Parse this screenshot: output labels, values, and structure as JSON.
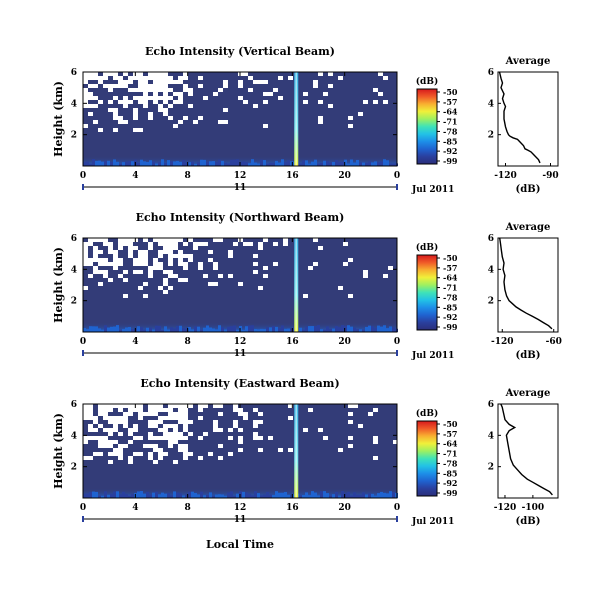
{
  "figure": {
    "xlabel": "Local Time",
    "panel_x_ticks": [
      "0",
      "4",
      "8",
      "12",
      "16",
      "20",
      "0"
    ],
    "panel_y_ticks": [
      "6",
      "4",
      "2"
    ],
    "day_label": "11",
    "month_label": "Jul 2011",
    "avg_title": "Average",
    "avg_xlabel": "(dB)",
    "colorbar_label": "(dB)",
    "colorbar_ticks": [
      "-50",
      "-57",
      "-64",
      "-71",
      "-78",
      "-85",
      "-92",
      "-99"
    ],
    "colormap": [
      "#2b2f7a",
      "#2a3f9e",
      "#1f63d0",
      "#1d8fe8",
      "#22c2e6",
      "#3fe3b8",
      "#9ef060",
      "#f0f03a",
      "#f8b030",
      "#f05a28",
      "#d7191c"
    ],
    "background_color": "#333c78",
    "colors": {
      "blank": "#ffffff",
      "axis": "#000000",
      "spike": "#7fe8f0",
      "spike_core": "#c8f870"
    }
  },
  "chart_data": [
    {
      "type": "heatmap",
      "title": "Echo Intensity (Vertical Beam)",
      "ylabel": "Height (km)",
      "xlabel": "",
      "xlim": [
        0,
        24
      ],
      "ylim": [
        0,
        6
      ],
      "x_ticks": [
        0,
        4,
        8,
        12,
        16,
        20,
        24
      ],
      "y_ticks": [
        2,
        4,
        6
      ],
      "color_range_db": [
        -99,
        -50
      ],
      "spike_local_time_h": 16.3,
      "average_profile": {
        "title": "Average",
        "xlabel": "(dB)",
        "x_ticks": [
          -120,
          -90
        ],
        "xlim": [
          -125,
          -85
        ],
        "ylim": [
          0,
          6
        ],
        "y_ticks": [
          2,
          4,
          6
        ],
        "points": [
          [
            -97,
            0.2
          ],
          [
            -98,
            0.4
          ],
          [
            -101,
            0.7
          ],
          [
            -103,
            0.9
          ],
          [
            -105,
            1.0
          ],
          [
            -107,
            1.1
          ],
          [
            -108,
            1.3
          ],
          [
            -110,
            1.5
          ],
          [
            -112,
            1.7
          ],
          [
            -115,
            1.8
          ],
          [
            -117,
            1.9
          ],
          [
            -118,
            2.0
          ],
          [
            -119,
            2.2
          ],
          [
            -120,
            2.5
          ],
          [
            -121,
            3.0
          ],
          [
            -121,
            3.5
          ],
          [
            -120,
            3.8
          ],
          [
            -121,
            4.0
          ],
          [
            -122,
            4.3
          ],
          [
            -121,
            4.6
          ],
          [
            -123,
            5.0
          ],
          [
            -122,
            5.3
          ],
          [
            -123,
            5.6
          ],
          [
            -124,
            6.0
          ]
        ]
      }
    },
    {
      "type": "heatmap",
      "title": "Echo Intensity (Northward Beam)",
      "ylabel": "Height (km)",
      "xlabel": "",
      "xlim": [
        0,
        24
      ],
      "ylim": [
        0,
        6
      ],
      "x_ticks": [
        0,
        4,
        8,
        12,
        16,
        20,
        24
      ],
      "y_ticks": [
        2,
        4,
        6
      ],
      "color_range_db": [
        -99,
        -50
      ],
      "spike_local_time_h": 16.3,
      "average_profile": {
        "title": "Average",
        "xlabel": "(dB)",
        "x_ticks": [
          -120,
          -60
        ],
        "xlim": [
          -125,
          -55
        ],
        "ylim": [
          0,
          6
        ],
        "y_ticks": [
          2,
          4,
          6
        ],
        "points": [
          [
            -62,
            0.2
          ],
          [
            -66,
            0.4
          ],
          [
            -72,
            0.6
          ],
          [
            -78,
            0.8
          ],
          [
            -85,
            1.0
          ],
          [
            -92,
            1.2
          ],
          [
            -98,
            1.4
          ],
          [
            -104,
            1.6
          ],
          [
            -108,
            1.8
          ],
          [
            -112,
            2.0
          ],
          [
            -115,
            2.3
          ],
          [
            -117,
            2.7
          ],
          [
            -118,
            3.2
          ],
          [
            -117,
            3.6
          ],
          [
            -119,
            4.0
          ],
          [
            -118,
            4.4
          ],
          [
            -120,
            4.8
          ],
          [
            -121,
            5.2
          ],
          [
            -122,
            5.6
          ],
          [
            -123,
            6.0
          ]
        ]
      }
    },
    {
      "type": "heatmap",
      "title": "Echo Intensity (Eastward Beam)",
      "ylabel": "Height (km)",
      "xlabel": "Local Time",
      "xlim": [
        0,
        24
      ],
      "ylim": [
        0,
        6
      ],
      "x_ticks": [
        0,
        4,
        8,
        12,
        16,
        20,
        24
      ],
      "y_ticks": [
        2,
        4,
        6
      ],
      "color_range_db": [
        -99,
        -50
      ],
      "spike_local_time_h": 16.3,
      "average_profile": {
        "title": "Average",
        "xlabel": "(dB)",
        "x_ticks": [
          -120,
          -100
        ],
        "xlim": [
          -125,
          -82
        ],
        "ylim": [
          0,
          6
        ],
        "y_ticks": [
          2,
          4,
          6
        ],
        "points": [
          [
            -86,
            0.2
          ],
          [
            -88,
            0.4
          ],
          [
            -92,
            0.6
          ],
          [
            -96,
            0.8
          ],
          [
            -100,
            1.0
          ],
          [
            -104,
            1.2
          ],
          [
            -108,
            1.5
          ],
          [
            -111,
            1.8
          ],
          [
            -114,
            2.1
          ],
          [
            -116,
            2.5
          ],
          [
            -117,
            3.0
          ],
          [
            -118,
            3.5
          ],
          [
            -119,
            4.0
          ],
          [
            -117,
            4.3
          ],
          [
            -113,
            4.5
          ],
          [
            -117,
            4.7
          ],
          [
            -120,
            5.0
          ],
          [
            -121,
            5.4
          ],
          [
            -122,
            5.8
          ],
          [
            -123,
            6.0
          ]
        ]
      }
    }
  ]
}
